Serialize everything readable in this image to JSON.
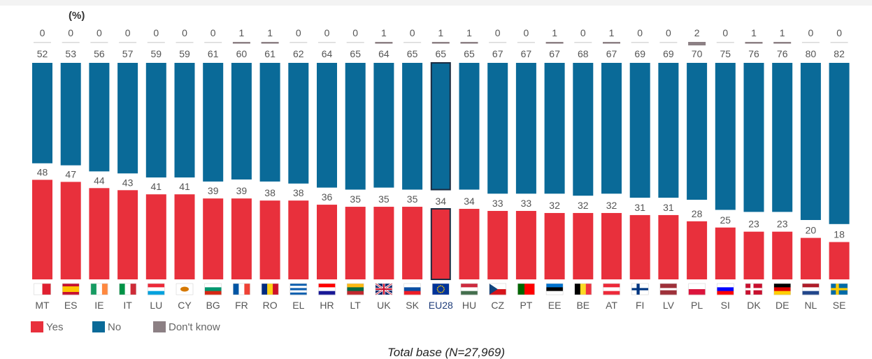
{
  "chart_data": {
    "type": "bar",
    "stacked": false,
    "unit_label": "(%)",
    "categories": [
      "MT",
      "ES",
      "IE",
      "IT",
      "LU",
      "CY",
      "BG",
      "FR",
      "RO",
      "EL",
      "HR",
      "LT",
      "UK",
      "SK",
      "EU28",
      "HU",
      "CZ",
      "PT",
      "EE",
      "BE",
      "AT",
      "FI",
      "LV",
      "PL",
      "SI",
      "DK",
      "DE",
      "NL",
      "SE"
    ],
    "series": [
      {
        "name": "Yes",
        "color": "#e8303c",
        "values": [
          48,
          47,
          44,
          43,
          41,
          41,
          39,
          39,
          38,
          38,
          36,
          35,
          35,
          35,
          34,
          34,
          33,
          33,
          32,
          32,
          32,
          31,
          31,
          28,
          25,
          23,
          23,
          20,
          18
        ]
      },
      {
        "name": "No",
        "color": "#0a6a98",
        "values": [
          52,
          53,
          56,
          57,
          59,
          59,
          61,
          60,
          61,
          62,
          64,
          65,
          64,
          65,
          65,
          65,
          67,
          67,
          67,
          68,
          67,
          69,
          69,
          70,
          75,
          76,
          76,
          80,
          82
        ]
      },
      {
        "name": "Don't know",
        "color": "#8c8084",
        "values": [
          0,
          0,
          0,
          0,
          0,
          0,
          0,
          1,
          1,
          0,
          0,
          0,
          1,
          0,
          1,
          1,
          0,
          0,
          1,
          0,
          1,
          0,
          0,
          2,
          0,
          1,
          1,
          0,
          0
        ]
      }
    ],
    "highlight_category": "EU28",
    "legend": {
      "position": "bottom-left",
      "entries": [
        "Yes",
        "No",
        "Don't know"
      ]
    },
    "ylim": [
      0,
      100
    ],
    "grid": false
  },
  "footnote": "Total base (N=27,969)",
  "flags": [
    "MT",
    "ES",
    "IE",
    "IT",
    "LU",
    "CY",
    "BG",
    "FR",
    "RO",
    "EL",
    "HR",
    "LT",
    "UK",
    "SK",
    "EU28",
    "HU",
    "CZ",
    "PT",
    "EE",
    "BE",
    "AT",
    "FI",
    "LV",
    "PL",
    "SI",
    "DK",
    "DE",
    "NL",
    "SE"
  ]
}
